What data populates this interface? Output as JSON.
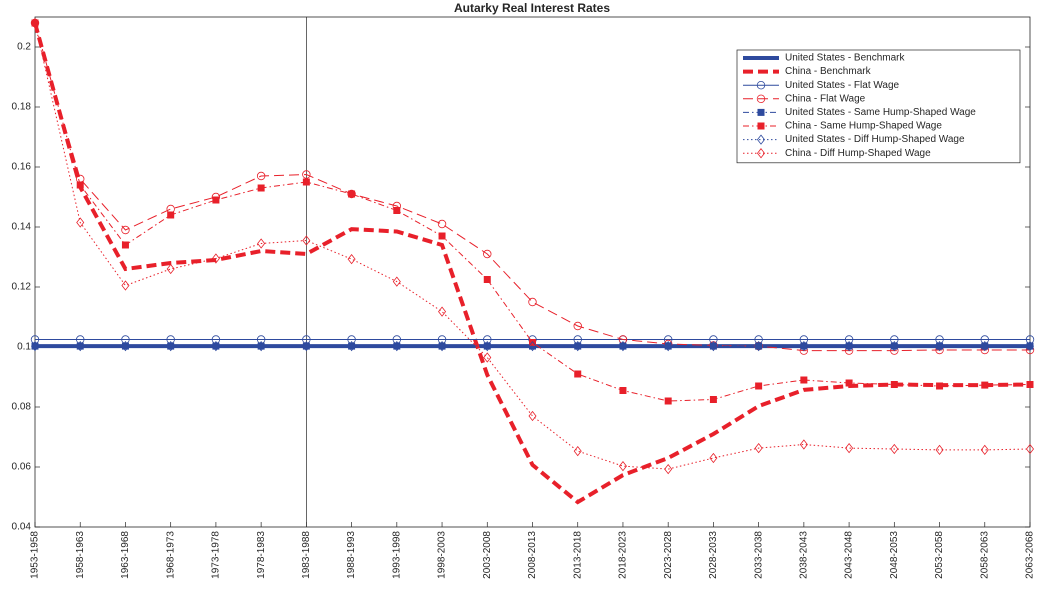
{
  "chart_data": {
    "type": "line",
    "title": "Autarky Real Interest Rates",
    "categories": [
      "1953-1958",
      "1958-1963",
      "1963-1968",
      "1968-1973",
      "1973-1978",
      "1978-1983",
      "1983-1988",
      "1988-1993",
      "1993-1998",
      "1998-2003",
      "2003-2008",
      "2008-2013",
      "2013-2018",
      "2018-2023",
      "2023-2028",
      "2028-2033",
      "2033-2038",
      "2038-2043",
      "2043-2048",
      "2048-2053",
      "2053-2058",
      "2058-2063",
      "2063-2068"
    ],
    "ylim": [
      0.04,
      0.21
    ],
    "yticks": [
      0.04,
      0.06,
      0.08,
      0.1,
      0.12,
      0.14,
      0.16,
      0.18,
      0.2
    ],
    "legend": "upper right",
    "series": [
      {
        "name": "United States - Benchmark",
        "color": "#2e4a9e",
        "width": 4,
        "dash": "solid",
        "marker": "none",
        "values": [
          0.1003,
          0.1003,
          0.1003,
          0.1003,
          0.1003,
          0.1003,
          0.1003,
          0.1003,
          0.1003,
          0.1003,
          0.1003,
          0.1003,
          0.1003,
          0.1003,
          0.1003,
          0.1003,
          0.1003,
          0.1003,
          0.1003,
          0.1003,
          0.1003,
          0.1003,
          0.1003
        ]
      },
      {
        "name": "China - Benchmark",
        "color": "#e8202a",
        "width": 4,
        "dash": "dashed",
        "marker": "none",
        "values": [
          0.208,
          0.1533,
          0.126,
          0.128,
          0.129,
          0.132,
          0.131,
          0.1393,
          0.1385,
          0.134,
          0.0907,
          0.0607,
          0.0483,
          0.0573,
          0.063,
          0.071,
          0.0803,
          0.0857,
          0.087,
          0.0875,
          0.0873,
          0.0873,
          0.0875
        ]
      },
      {
        "name": "United States - Flat Wage",
        "color": "#2e4a9e",
        "width": 1,
        "dash": "solid",
        "marker": "circle",
        "values": [
          0.1025,
          0.1025,
          0.1025,
          0.1025,
          0.1025,
          0.1025,
          0.1025,
          0.1025,
          0.1025,
          0.1025,
          0.1025,
          0.1025,
          0.1025,
          0.1025,
          0.1025,
          0.1025,
          0.1025,
          0.1025,
          0.1025,
          0.1025,
          0.1025,
          0.1025,
          0.1025
        ]
      },
      {
        "name": "China - Flat Wage",
        "color": "#e8202a",
        "width": 1,
        "dash": "dashed",
        "marker": "circle",
        "values": [
          0.208,
          0.156,
          0.139,
          0.146,
          0.15,
          0.157,
          0.1575,
          0.151,
          0.147,
          0.141,
          0.131,
          0.115,
          0.107,
          0.1025,
          0.101,
          0.1005,
          0.1003,
          0.0988,
          0.0988,
          0.0988,
          0.099,
          0.099,
          0.099
        ]
      },
      {
        "name": "United States - Same Hump-Shaped Wage",
        "color": "#2e4a9e",
        "width": 1,
        "dash": "dashdot",
        "marker": "square",
        "values": [
          0.1003,
          0.1003,
          0.1003,
          0.1003,
          0.1003,
          0.1003,
          0.1003,
          0.1003,
          0.1003,
          0.1003,
          0.1003,
          0.1003,
          0.1003,
          0.1003,
          0.1003,
          0.1003,
          0.1003,
          0.1003,
          0.1003,
          0.1003,
          0.1003,
          0.1003,
          0.1003
        ]
      },
      {
        "name": "China - Same Hump-Shaped Wage",
        "color": "#e8202a",
        "width": 1,
        "dash": "dashdot",
        "marker": "square",
        "values": [
          0.208,
          0.154,
          0.134,
          0.144,
          0.149,
          0.153,
          0.155,
          0.151,
          0.1455,
          0.137,
          0.1225,
          0.1015,
          0.091,
          0.0855,
          0.082,
          0.0825,
          0.087,
          0.089,
          0.088,
          0.0875,
          0.087,
          0.0873,
          0.0875
        ]
      },
      {
        "name": "United States - Diff Hump-Shaped Wage",
        "color": "#2e4a9e",
        "width": 1,
        "dash": "dotted",
        "marker": "diamond",
        "values": [
          0.1003,
          0.1003,
          0.1003,
          0.1003,
          0.1003,
          0.1003,
          0.1003,
          0.1003,
          0.1003,
          0.1003,
          0.1003,
          0.1003,
          0.1003,
          0.1003,
          0.1003,
          0.1003,
          0.1003,
          0.1003,
          0.1003,
          0.1003,
          0.1003,
          0.1003,
          0.1003
        ]
      },
      {
        "name": "China - Diff Hump-Shaped Wage",
        "color": "#e8202a",
        "width": 1,
        "dash": "dotted",
        "marker": "diamond",
        "values": [
          0.208,
          0.1415,
          0.1205,
          0.126,
          0.1295,
          0.1345,
          0.1355,
          0.1293,
          0.1218,
          0.1118,
          0.0965,
          0.077,
          0.0653,
          0.0603,
          0.0593,
          0.063,
          0.0663,
          0.0675,
          0.0663,
          0.066,
          0.0657,
          0.0657,
          0.066
        ]
      }
    ]
  }
}
